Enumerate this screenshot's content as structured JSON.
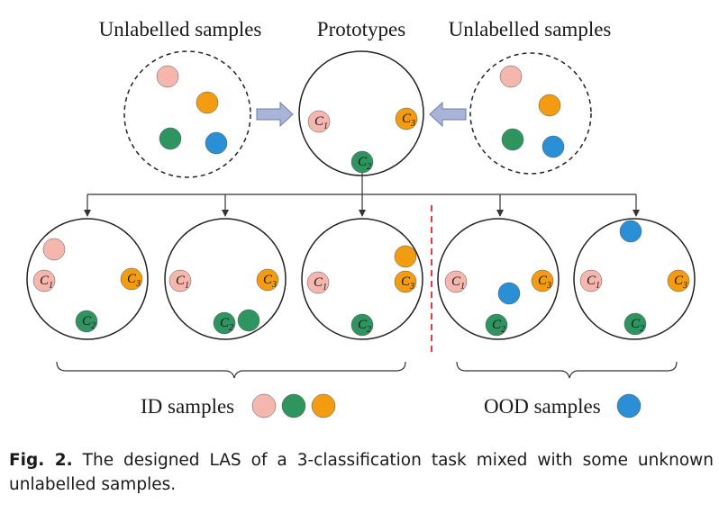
{
  "labels": {
    "unlabelled_left": "Unlabelled samples",
    "prototypes": "Prototypes",
    "unlabelled_right": "Unlabelled samples",
    "id_samples": "ID samples",
    "ood_samples": "OOD samples"
  },
  "class_labels": {
    "c": "C",
    "c1_sub": "1",
    "c2_sub": "2",
    "c3_sub": "3"
  },
  "colors": {
    "class1": "#f4b6ad",
    "class2": "#2e9460",
    "class3": "#f39c12",
    "ood": "#2a8fd4",
    "arrow_fill": "#a9b4d8",
    "divider": "#d62b2b"
  },
  "caption": {
    "label": "Fig. 2.",
    "text": "The designed LAS of a 3-classification task mixed with some unknown unlabelled samples."
  }
}
